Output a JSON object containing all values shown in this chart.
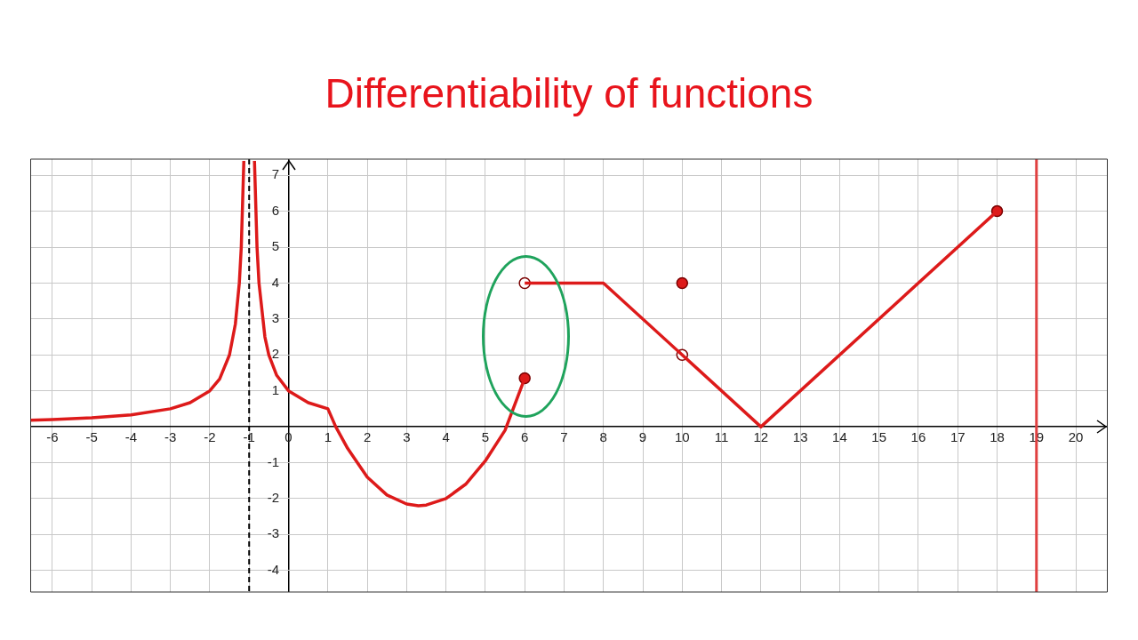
{
  "chart_data": {
    "type": "line",
    "title": "Differentiability of functions",
    "xlim": [
      -6.55,
      20.8
    ],
    "ylim": [
      -4.6,
      7.45
    ],
    "xticks": [
      -6,
      -5,
      -4,
      -3,
      -2,
      -1,
      0,
      1,
      2,
      3,
      4,
      5,
      6,
      7,
      8,
      9,
      10,
      11,
      12,
      13,
      14,
      15,
      16,
      17,
      18,
      19,
      20
    ],
    "yticks": [
      -4,
      -3,
      -2,
      -1,
      {
        "value": 0,
        "label": null
      },
      1,
      2,
      3,
      4,
      5,
      6,
      7
    ],
    "grid": true,
    "legend": false,
    "series": [
      {
        "type": "line",
        "color": "#dd1a1a",
        "marker": "none",
        "x": [
          -6.55,
          -6,
          -5,
          -4,
          -3,
          -2.5,
          -2,
          -1.75,
          -1.5,
          -1.35,
          -1.25,
          -1.2,
          -1.135,
          -1,
          -0.865,
          -0.8,
          -0.75,
          -0.6,
          -0.5,
          -0.3,
          0,
          0.5,
          1,
          1.2,
          1.5,
          2,
          2.5,
          3,
          3.3,
          3.5,
          4,
          4.5,
          5,
          5.5,
          6
        ],
        "values": [
          0.18,
          0.2,
          0.25,
          0.33,
          0.5,
          0.67,
          1,
          1.33,
          2,
          2.86,
          4,
          5,
          7.4,
          null,
          7.4,
          5,
          4,
          2.5,
          2,
          1.43,
          1,
          0.67,
          0.5,
          0,
          -0.6,
          -1.4,
          -1.9,
          -2.15,
          -2.2,
          -2.18,
          -2,
          -1.6,
          -0.95,
          -0.1,
          1.35
        ]
      },
      {
        "type": "line",
        "color": "#dd1a1a",
        "marker": "none",
        "x": [
          6,
          8,
          12,
          18
        ],
        "values": [
          4,
          4,
          0,
          6
        ]
      },
      {
        "type": "scatter",
        "color": "#dd1a1a",
        "marker": "circle",
        "x": [
          6,
          10,
          18
        ],
        "values": [
          1.35,
          4,
          6
        ]
      },
      {
        "type": "scatter",
        "color": "#ffffff",
        "marker": "circle",
        "x": [
          6,
          10
        ],
        "values": [
          4,
          2
        ]
      }
    ],
    "ref_lines": [
      {
        "axis": "x",
        "value": -1,
        "color": "#000000",
        "line_style": "dashed"
      },
      {
        "axis": "x",
        "value": 19,
        "color": "#e04040",
        "line_style": "solid"
      }
    ]
  }
}
